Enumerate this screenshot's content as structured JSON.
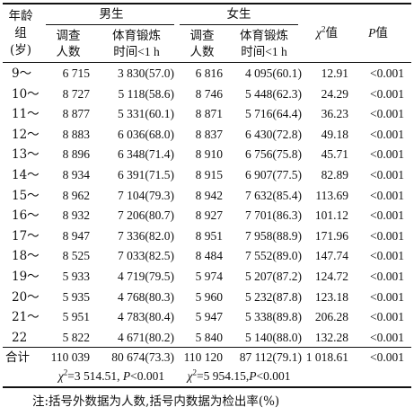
{
  "header": {
    "age_group": [
      "年龄",
      "组",
      "(岁)"
    ],
    "male": "男生",
    "female": "女生",
    "surveyed": [
      "调查",
      "人数"
    ],
    "exercise": [
      "体育锻炼",
      "时间<1 h"
    ],
    "chi_symbol": "χ",
    "chi_sup": "2",
    "chi_suffix": "值",
    "p_symbol": "P",
    "p_suffix": "值"
  },
  "rows": [
    {
      "age": "9～",
      "male_n": "6 715",
      "male_ex": "3 830(57.0)",
      "female_n": "6 816",
      "female_ex": "4 095(60.1)",
      "chi2": "12.91",
      "p": "<0.001"
    },
    {
      "age": "10～",
      "male_n": "8 727",
      "male_ex": "5 118(58.6)",
      "female_n": "8 746",
      "female_ex": "5 448(62.3)",
      "chi2": "24.29",
      "p": "<0.001"
    },
    {
      "age": "11～",
      "male_n": "8 877",
      "male_ex": "5 331(60.1)",
      "female_n": "8 871",
      "female_ex": "5 716(64.4)",
      "chi2": "36.23",
      "p": "<0.001"
    },
    {
      "age": "12～",
      "male_n": "8 883",
      "male_ex": "6 036(68.0)",
      "female_n": "8 837",
      "female_ex": "6 430(72.8)",
      "chi2": "49.18",
      "p": "<0.001"
    },
    {
      "age": "13～",
      "male_n": "8 896",
      "male_ex": "6 348(71.4)",
      "female_n": "8 910",
      "female_ex": "6 756(75.8)",
      "chi2": "45.71",
      "p": "<0.001"
    },
    {
      "age": "14～",
      "male_n": "8 934",
      "male_ex": "6 391(71.5)",
      "female_n": "8 915",
      "female_ex": "6 907(77.5)",
      "chi2": "82.89",
      "p": "<0.001"
    },
    {
      "age": "15～",
      "male_n": "8 962",
      "male_ex": "7 104(79.3)",
      "female_n": "8 942",
      "female_ex": "7 632(85.4)",
      "chi2": "113.69",
      "p": "<0.001"
    },
    {
      "age": "16～",
      "male_n": "8 932",
      "male_ex": "7 206(80.7)",
      "female_n": "8 927",
      "female_ex": "7 701(86.3)",
      "chi2": "101.12",
      "p": "<0.001"
    },
    {
      "age": "17～",
      "male_n": "8 947",
      "male_ex": "7 336(82.0)",
      "female_n": "8 951",
      "female_ex": "7 958(88.9)",
      "chi2": "171.96",
      "p": "<0.001"
    },
    {
      "age": "18～",
      "male_n": "8 525",
      "male_ex": "7 033(82.5)",
      "female_n": "8 484",
      "female_ex": "7 552(89.0)",
      "chi2": "147.74",
      "p": "<0.001"
    },
    {
      "age": "19～",
      "male_n": "5 933",
      "male_ex": "4 719(79.5)",
      "female_n": "5 974",
      "female_ex": "5 207(87.2)",
      "chi2": "124.72",
      "p": "<0.001"
    },
    {
      "age": "20～",
      "male_n": "5 935",
      "male_ex": "4 768(80.3)",
      "female_n": "5 960",
      "female_ex": "5 232(87.8)",
      "chi2": "123.18",
      "p": "<0.001"
    },
    {
      "age": "21～",
      "male_n": "5 951",
      "male_ex": "4 783(80.4)",
      "female_n": "5 947",
      "female_ex": "5 338(89.8)",
      "chi2": "206.28",
      "p": "<0.001"
    },
    {
      "age": "22",
      "male_n": "5 822",
      "male_ex": "4 671(80.2)",
      "female_n": "5 840",
      "female_ex": "5 140(88.0)",
      "chi2": "132.28",
      "p": "<0.001"
    }
  ],
  "total": {
    "label": "合计",
    "male_n": "110 039",
    "male_ex": "80 674(73.3)",
    "female_n": "110 120",
    "female_ex": "87 112(79.1)",
    "chi2": "1 018.61",
    "p": "<0.001"
  },
  "trend": {
    "male": {
      "chi": "χ",
      "sup": "2",
      "value": "=3 514.51,",
      "p_sym": "P",
      "p_val": "<0.001"
    },
    "female": {
      "chi": "χ",
      "sup": "2",
      "value": "=5 954.15,",
      "p_sym": "P",
      "p_val": "<0.001"
    }
  },
  "note": "注:括号外数据为人数,括号内数据为检出率(%)"
}
